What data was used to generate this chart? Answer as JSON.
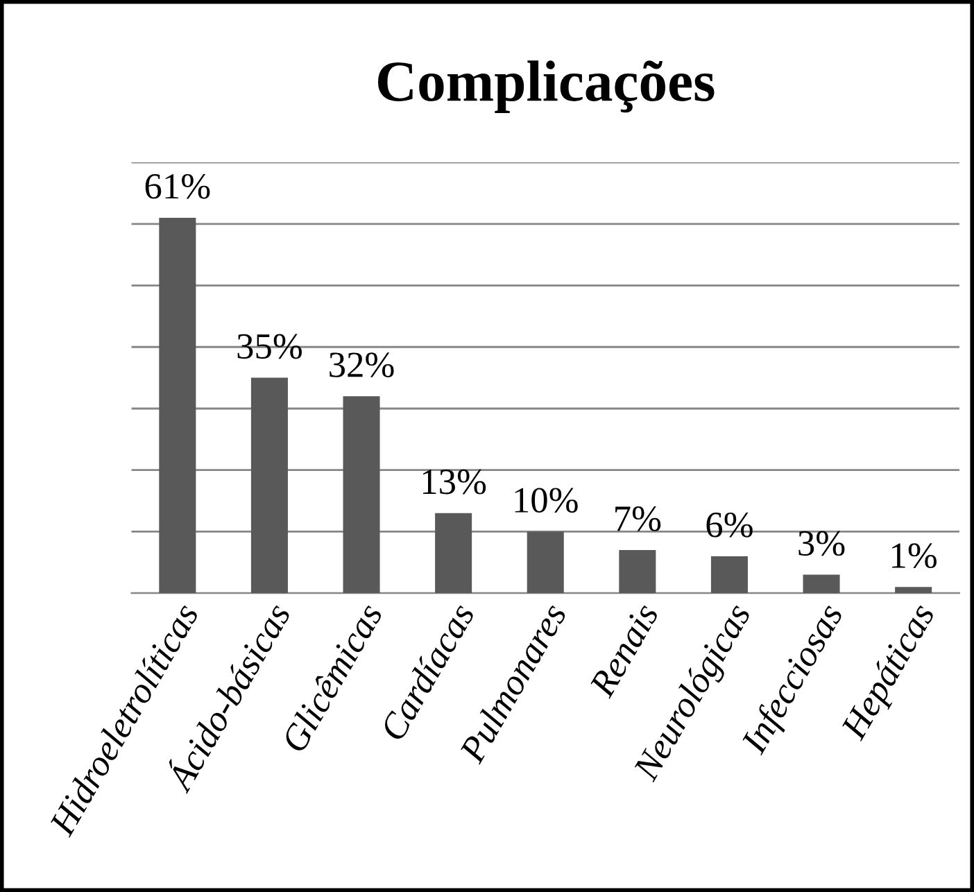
{
  "chart_data": {
    "type": "bar",
    "title": "Complicações",
    "categories": [
      "Hidroeletrolíticas",
      "Ácido-básicas",
      "Glicêmicas",
      "Cardíacas",
      "Pulmonares",
      "Renais",
      "Neurológicas",
      "Infecciosas",
      "Hepáticas"
    ],
    "values": [
      61,
      35,
      32,
      13,
      10,
      7,
      6,
      3,
      1
    ],
    "value_labels": [
      "61%",
      "35%",
      "32%",
      "13%",
      "10%",
      "7%",
      "6%",
      "3%",
      "1%"
    ],
    "color": "#595959",
    "ylim": [
      0,
      70
    ],
    "yticks": [
      {
        "value": 0,
        "label": null
      },
      {
        "value": 10,
        "label": null
      },
      {
        "value": 20,
        "label": null
      },
      {
        "value": 30,
        "label": null
      },
      {
        "value": 40,
        "label": null
      },
      {
        "value": 50,
        "label": null
      },
      {
        "value": 60,
        "label": null
      },
      {
        "value": 70,
        "label": null
      }
    ],
    "grid": "y",
    "tick_labels": "x"
  }
}
